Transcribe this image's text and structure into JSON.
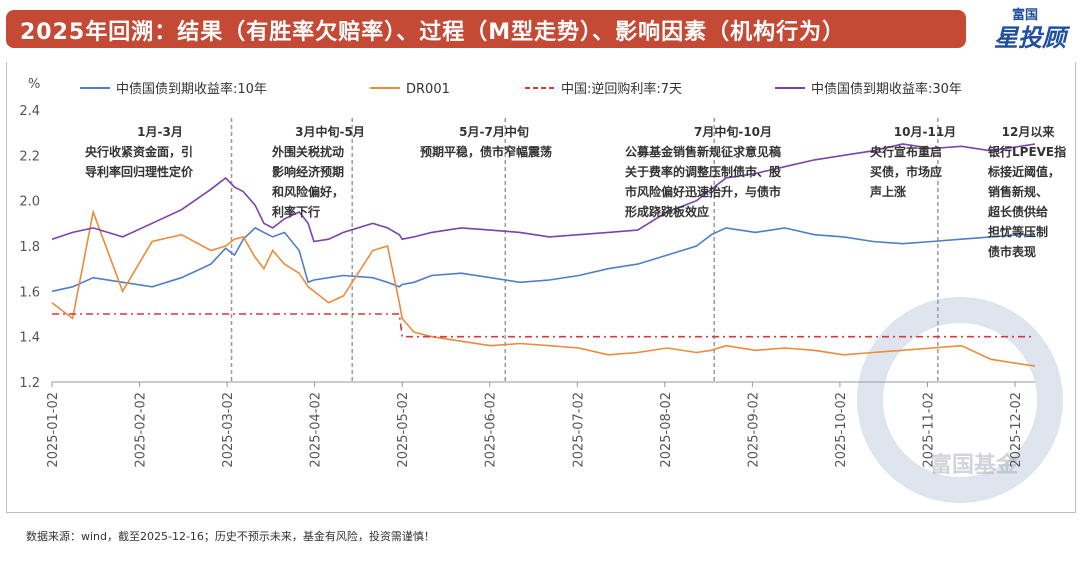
{
  "header": {
    "title": "2025年回溯：结果（有胜率欠赔率）、过程（M型走势）、影响因素（机构行为）",
    "logo_top": "富国",
    "logo_bottom": "星投顾"
  },
  "footer": {
    "note": "数据来源：wind，截至2025-12-16；历史不预示未来，基金有风险，投资需谨慎！"
  },
  "watermark": "富国基金",
  "colors": {
    "title_bg": "#c54a36",
    "cgb10": "#4f7ec9",
    "dr001": "#ed8b3a",
    "repo": "#d9363e",
    "cgb30": "#7a43ad"
  },
  "chart_data": {
    "type": "line",
    "ylabel": "%",
    "ylim": [
      1.2,
      2.4
    ],
    "yticks": [
      "1.2",
      "1.4",
      "1.6",
      "1.8",
      "2.0",
      "2.2",
      "2.4"
    ],
    "x_tick_labels": [
      "2025-01-02",
      "2025-02-02",
      "2025-03-02",
      "2025-04-02",
      "2025-05-02",
      "2025-06-02",
      "2025-07-02",
      "2025-08-02",
      "2025-09-02",
      "2025-10-02",
      "2025-11-02",
      "2025-12-02"
    ],
    "x": [
      1,
      8,
      15,
      25,
      35,
      45,
      55,
      60,
      63,
      66,
      70,
      73,
      76,
      80,
      85,
      88,
      90,
      95,
      100,
      110,
      115,
      119,
      120,
      124,
      130,
      140,
      150,
      160,
      170,
      180,
      190,
      200,
      210,
      220,
      225,
      230,
      240,
      250,
      260,
      270,
      280,
      290,
      300,
      310,
      320,
      330,
      335
    ],
    "series": [
      {
        "name": "中债国债到期收益率:10年",
        "color": "#4f7ec9",
        "style": "solid",
        "values": [
          1.6,
          1.62,
          1.66,
          1.64,
          1.62,
          1.66,
          1.72,
          1.79,
          1.76,
          1.83,
          1.88,
          1.86,
          1.84,
          1.86,
          1.78,
          1.64,
          1.65,
          1.66,
          1.67,
          1.66,
          1.64,
          1.62,
          1.63,
          1.64,
          1.67,
          1.68,
          1.66,
          1.64,
          1.65,
          1.67,
          1.7,
          1.72,
          1.76,
          1.8,
          1.85,
          1.88,
          1.86,
          1.88,
          1.85,
          1.84,
          1.82,
          1.81,
          1.82,
          1.83,
          1.84,
          1.85,
          1.85
        ]
      },
      {
        "name": "DR001",
        "color": "#ed8b3a",
        "style": "solid",
        "values": [
          1.55,
          1.48,
          1.95,
          1.6,
          1.82,
          1.85,
          1.78,
          1.8,
          1.83,
          1.84,
          1.75,
          1.7,
          1.78,
          1.72,
          1.68,
          1.62,
          1.6,
          1.55,
          1.58,
          1.78,
          1.8,
          1.55,
          1.48,
          1.42,
          1.4,
          1.38,
          1.36,
          1.37,
          1.36,
          1.35,
          1.32,
          1.33,
          1.35,
          1.33,
          1.34,
          1.36,
          1.34,
          1.35,
          1.34,
          1.32,
          1.33,
          1.34,
          1.35,
          1.36,
          1.3,
          1.28,
          1.27
        ]
      },
      {
        "name": "中国:逆回购利率:7天",
        "color": "#d9363e",
        "style": "dashed",
        "values": [
          1.5,
          1.5,
          1.5,
          1.5,
          1.5,
          1.5,
          1.5,
          1.5,
          1.5,
          1.5,
          1.5,
          1.5,
          1.5,
          1.5,
          1.5,
          1.5,
          1.5,
          1.5,
          1.5,
          1.5,
          1.5,
          1.5,
          1.4,
          1.4,
          1.4,
          1.4,
          1.4,
          1.4,
          1.4,
          1.4,
          1.4,
          1.4,
          1.4,
          1.4,
          1.4,
          1.4,
          1.4,
          1.4,
          1.4,
          1.4,
          1.4,
          1.4,
          1.4,
          1.4,
          1.4,
          1.4,
          1.4
        ]
      },
      {
        "name": "中债国债到期收益率:30年",
        "color": "#7a43ad",
        "style": "solid",
        "values": [
          1.83,
          1.86,
          1.88,
          1.84,
          1.9,
          1.96,
          2.05,
          2.1,
          2.06,
          2.04,
          1.98,
          1.9,
          1.88,
          1.92,
          1.95,
          1.9,
          1.82,
          1.83,
          1.86,
          1.9,
          1.88,
          1.85,
          1.83,
          1.84,
          1.86,
          1.88,
          1.87,
          1.86,
          1.84,
          1.85,
          1.86,
          1.87,
          1.95,
          2.0,
          2.05,
          2.1,
          2.12,
          2.15,
          2.18,
          2.2,
          2.22,
          2.25,
          2.23,
          2.24,
          2.22,
          2.24,
          2.25
        ]
      }
    ],
    "period_boundaries_x": [
      62,
      103,
      155,
      226,
      302
    ],
    "annotations": [
      {
        "period": "1月-3月",
        "lines": [
          "央行收紧资金面，引",
          "导利率回归理性定价"
        ]
      },
      {
        "period": "3月中旬-5月",
        "lines": [
          "外围关税扰动",
          "影响经济预期",
          "和风险偏好，",
          "利率下行"
        ]
      },
      {
        "period": "5月-7月中旬",
        "lines": [
          "预期平稳，债市窄幅震荡"
        ]
      },
      {
        "period": "7月中旬-10月",
        "lines": [
          "公募基金销售新规征求意见稿",
          "关于费率的调整压制债市、股",
          "市风险偏好迅速抬升，与债市",
          "形成跷跷板效应"
        ]
      },
      {
        "period": "10月-11月",
        "lines": [
          "央行宣布重启",
          "买债，市场应",
          "声上涨"
        ]
      },
      {
        "period": "12月以来",
        "lines": [
          "银行LPEVE指",
          "标接近阈值，",
          "销售新规、",
          "超长债供给",
          "担忧等压制",
          "债市表现"
        ]
      }
    ]
  }
}
